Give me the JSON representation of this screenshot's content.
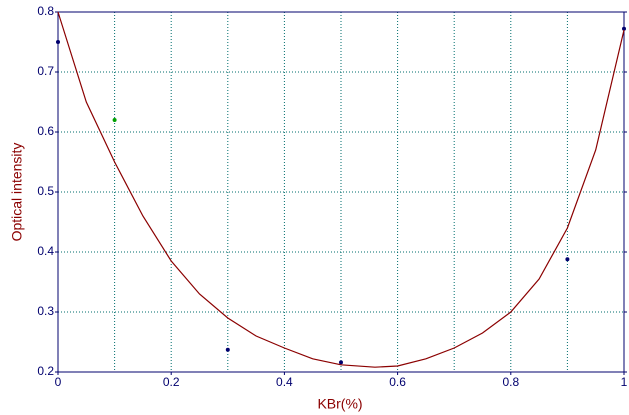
{
  "chart_data": {
    "type": "scatter",
    "x_label": "KBr(%)",
    "y_label": "Optical intensity",
    "xlim": [
      0,
      1
    ],
    "ylim": [
      0.2,
      0.8
    ],
    "xticks": [
      0,
      0.2,
      0.4,
      0.6,
      0.8,
      1
    ],
    "yticks": [
      0.2,
      0.3,
      0.4,
      0.5,
      0.6,
      0.7,
      0.8
    ],
    "xgrid": [
      0,
      0.1,
      0.2,
      0.3,
      0.4,
      0.5,
      0.6,
      0.7,
      0.8,
      0.9,
      1
    ],
    "grid": true,
    "grid_color": "#006e6e",
    "axis_color": "#00006e",
    "series": [
      {
        "type": "scatter",
        "x": [
          0,
          0.1,
          0.3,
          0.5,
          0.9,
          1
        ],
        "values": [
          0.75,
          0.62,
          0.237,
          0.216,
          0.388,
          0.772
        ],
        "colors": [
          "#00006e",
          "#00a000",
          "#00006e",
          "#00006e",
          "#00006e",
          "#00006e"
        ]
      },
      {
        "type": "line",
        "color": "#8b0000",
        "x": [
          0,
          0.05,
          0.1,
          0.15,
          0.2,
          0.25,
          0.3,
          0.35,
          0.4,
          0.45,
          0.5,
          0.56,
          0.6,
          0.65,
          0.7,
          0.75,
          0.8,
          0.85,
          0.9,
          0.95,
          1
        ],
        "values": [
          0.8,
          0.65,
          0.55,
          0.46,
          0.385,
          0.33,
          0.29,
          0.26,
          0.24,
          0.222,
          0.212,
          0.208,
          0.21,
          0.222,
          0.24,
          0.265,
          0.3,
          0.355,
          0.44,
          0.57,
          0.77
        ]
      }
    ]
  }
}
